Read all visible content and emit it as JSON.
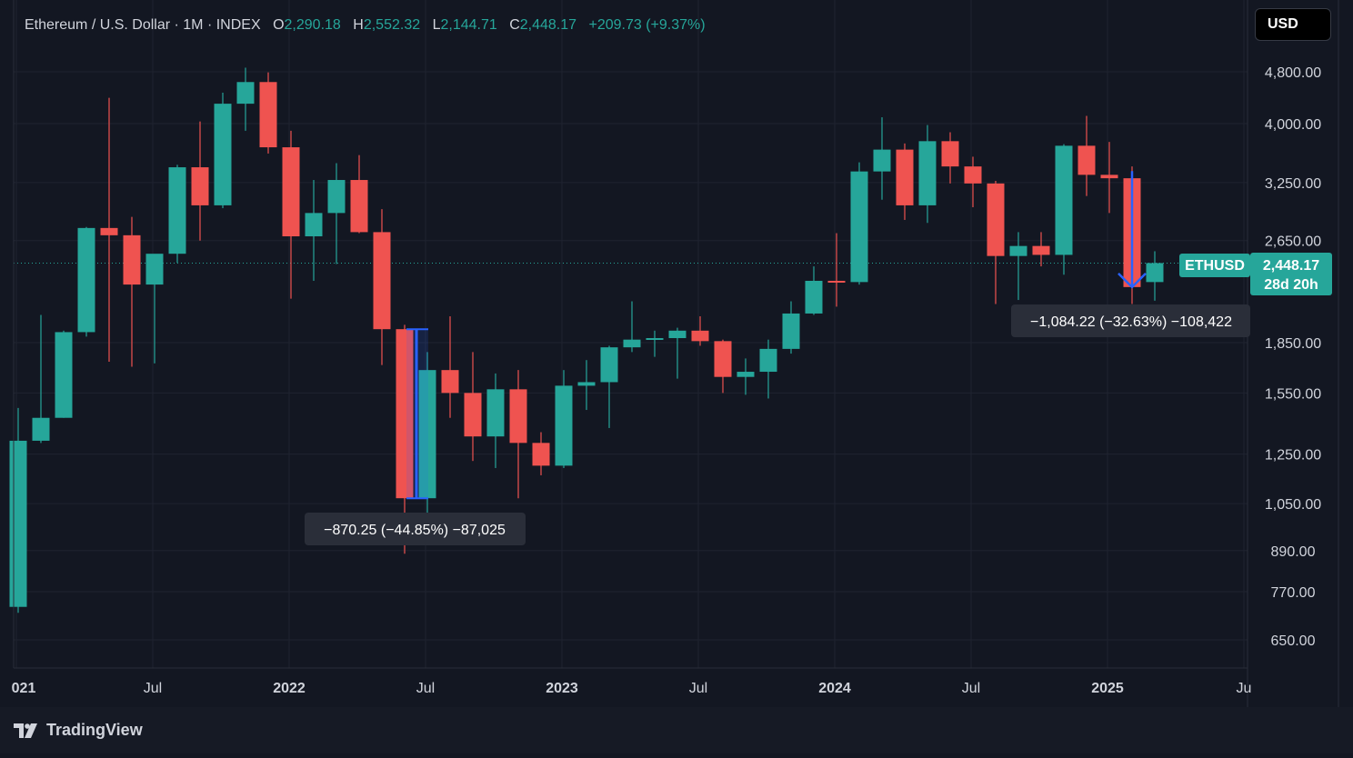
{
  "header": {
    "symbol": "Ethereum / U.S. Dollar · 1M · INDEX",
    "o_label": "O",
    "o_value": "2,290.18",
    "h_label": "H",
    "h_value": "2,552.32",
    "l_label": "L",
    "l_value": "2,144.71",
    "c_label": "C",
    "c_value": "2,448.17",
    "change": "+209.73 (+9.37%)"
  },
  "currency_button": "USD",
  "price_tag": {
    "symbol": "ETHUSD",
    "price": "2,448.17",
    "countdown": "28d 20h"
  },
  "measurements": [
    {
      "label": "−870.25 (−44.85%) −87,025",
      "from": 1940,
      "to": 1070,
      "start_month": "2022-06"
    },
    {
      "label": "−1,084.22 (−32.63%) −108,422",
      "from": 3330,
      "to": 2250,
      "start_month": "2025-02"
    }
  ],
  "brand": "TradingView",
  "colors": {
    "up": "#26a69a",
    "down": "#ef5350",
    "background": "#131722",
    "measure": "#2962ff"
  },
  "chart_data": {
    "type": "candlestick",
    "y_scale": "log",
    "y_ticks": [
      650,
      770,
      890,
      1050,
      1250,
      1550,
      1850,
      2650,
      3250,
      4000,
      4800
    ],
    "y_tick_labels": [
      "650.00",
      "770.00",
      "890.00",
      "1,050.00",
      "1,250.00",
      "1,550.00",
      "1,850.00",
      "2,650.00",
      "3,250.00",
      "4,000.00",
      "4,800.00"
    ],
    "x_tick_labels": [
      "021",
      "Jul",
      "2022",
      "Jul",
      "2023",
      "Jul",
      "2024",
      "Jul",
      "2025",
      "Ju"
    ],
    "x_tick_months": [
      "2021-01",
      "2021-07",
      "2022-01",
      "2022-07",
      "2023-01",
      "2023-07",
      "2024-01",
      "2024-07",
      "2025-01",
      "2025-07"
    ],
    "last_price": 2448.17,
    "candles": [
      {
        "month": "2021-01",
        "o": 730,
        "h": 1470,
        "l": 715,
        "c": 1310
      },
      {
        "month": "2021-02",
        "o": 1310,
        "h": 2040,
        "l": 1300,
        "c": 1420
      },
      {
        "month": "2021-03",
        "o": 1420,
        "h": 1930,
        "l": 1420,
        "c": 1920
      },
      {
        "month": "2021-04",
        "o": 1920,
        "h": 2780,
        "l": 1890,
        "c": 2770
      },
      {
        "month": "2021-05",
        "o": 2770,
        "h": 4380,
        "l": 1730,
        "c": 2700
      },
      {
        "month": "2021-06",
        "o": 2700,
        "h": 2880,
        "l": 1700,
        "c": 2270
      },
      {
        "month": "2021-07",
        "o": 2270,
        "h": 2520,
        "l": 1720,
        "c": 2530
      },
      {
        "month": "2021-08",
        "o": 2530,
        "h": 3460,
        "l": 2450,
        "c": 3430
      },
      {
        "month": "2021-09",
        "o": 3430,
        "h": 4030,
        "l": 2650,
        "c": 3000
      },
      {
        "month": "2021-10",
        "o": 3000,
        "h": 4460,
        "l": 2970,
        "c": 4290
      },
      {
        "month": "2021-11",
        "o": 4290,
        "h": 4870,
        "l": 3900,
        "c": 4630
      },
      {
        "month": "2021-12",
        "o": 4630,
        "h": 4790,
        "l": 3600,
        "c": 3680
      },
      {
        "month": "2022-01",
        "o": 3680,
        "h": 3900,
        "l": 2160,
        "c": 2690
      },
      {
        "month": "2022-02",
        "o": 2690,
        "h": 3280,
        "l": 2300,
        "c": 2920
      },
      {
        "month": "2022-03",
        "o": 2920,
        "h": 3480,
        "l": 2440,
        "c": 3280
      },
      {
        "month": "2022-04",
        "o": 3280,
        "h": 3580,
        "l": 2720,
        "c": 2730
      },
      {
        "month": "2022-05",
        "o": 2730,
        "h": 2960,
        "l": 1710,
        "c": 1940
      },
      {
        "month": "2022-06",
        "o": 1940,
        "h": 1970,
        "l": 880,
        "c": 1070
      },
      {
        "month": "2022-07",
        "o": 1070,
        "h": 1790,
        "l": 1000,
        "c": 1680
      },
      {
        "month": "2022-08",
        "o": 1680,
        "h": 2030,
        "l": 1420,
        "c": 1550
      },
      {
        "month": "2022-09",
        "o": 1550,
        "h": 1790,
        "l": 1220,
        "c": 1330
      },
      {
        "month": "2022-10",
        "o": 1330,
        "h": 1660,
        "l": 1190,
        "c": 1570
      },
      {
        "month": "2022-11",
        "o": 1570,
        "h": 1680,
        "l": 1070,
        "c": 1300
      },
      {
        "month": "2022-12",
        "o": 1300,
        "h": 1350,
        "l": 1160,
        "c": 1200
      },
      {
        "month": "2023-01",
        "o": 1200,
        "h": 1680,
        "l": 1190,
        "c": 1590
      },
      {
        "month": "2023-02",
        "o": 1590,
        "h": 1740,
        "l": 1460,
        "c": 1610
      },
      {
        "month": "2023-03",
        "o": 1610,
        "h": 1830,
        "l": 1370,
        "c": 1820
      },
      {
        "month": "2023-04",
        "o": 1820,
        "h": 2140,
        "l": 1790,
        "c": 1870
      },
      {
        "month": "2023-05",
        "o": 1870,
        "h": 1930,
        "l": 1760,
        "c": 1880
      },
      {
        "month": "2023-06",
        "o": 1880,
        "h": 1950,
        "l": 1630,
        "c": 1930
      },
      {
        "month": "2023-07",
        "o": 1930,
        "h": 2030,
        "l": 1830,
        "c": 1860
      },
      {
        "month": "2023-08",
        "o": 1860,
        "h": 1870,
        "l": 1550,
        "c": 1640
      },
      {
        "month": "2023-09",
        "o": 1640,
        "h": 1750,
        "l": 1540,
        "c": 1670
      },
      {
        "month": "2023-10",
        "o": 1670,
        "h": 1870,
        "l": 1520,
        "c": 1810
      },
      {
        "month": "2023-11",
        "o": 1810,
        "h": 2140,
        "l": 1780,
        "c": 2050
      },
      {
        "month": "2023-12",
        "o": 2050,
        "h": 2420,
        "l": 2040,
        "c": 2300
      },
      {
        "month": "2024-01",
        "o": 2300,
        "h": 2720,
        "l": 2100,
        "c": 2290
      },
      {
        "month": "2024-02",
        "o": 2290,
        "h": 3490,
        "l": 2270,
        "c": 3380
      },
      {
        "month": "2024-03",
        "o": 3380,
        "h": 4090,
        "l": 3060,
        "c": 3650
      },
      {
        "month": "2024-04",
        "o": 3650,
        "h": 3730,
        "l": 2850,
        "c": 3000
      },
      {
        "month": "2024-05",
        "o": 3000,
        "h": 3980,
        "l": 2820,
        "c": 3760
      },
      {
        "month": "2024-06",
        "o": 3760,
        "h": 3880,
        "l": 3240,
        "c": 3440
      },
      {
        "month": "2024-07",
        "o": 3440,
        "h": 3560,
        "l": 2980,
        "c": 3240
      },
      {
        "month": "2024-08",
        "o": 3240,
        "h": 3270,
        "l": 2120,
        "c": 2510
      },
      {
        "month": "2024-09",
        "o": 2510,
        "h": 2730,
        "l": 2150,
        "c": 2600
      },
      {
        "month": "2024-10",
        "o": 2600,
        "h": 2730,
        "l": 2420,
        "c": 2520
      },
      {
        "month": "2024-11",
        "o": 2520,
        "h": 3720,
        "l": 2350,
        "c": 3700
      },
      {
        "month": "2024-12",
        "o": 3700,
        "h": 4110,
        "l": 3100,
        "c": 3340
      },
      {
        "month": "2025-01",
        "o": 3340,
        "h": 3750,
        "l": 2920,
        "c": 3300
      },
      {
        "month": "2025-02",
        "o": 3300,
        "h": 3440,
        "l": 2120,
        "c": 2250
      },
      {
        "month": "2025-03",
        "o": 2290,
        "h": 2552.32,
        "l": 2144.71,
        "c": 2448.17
      }
    ]
  }
}
